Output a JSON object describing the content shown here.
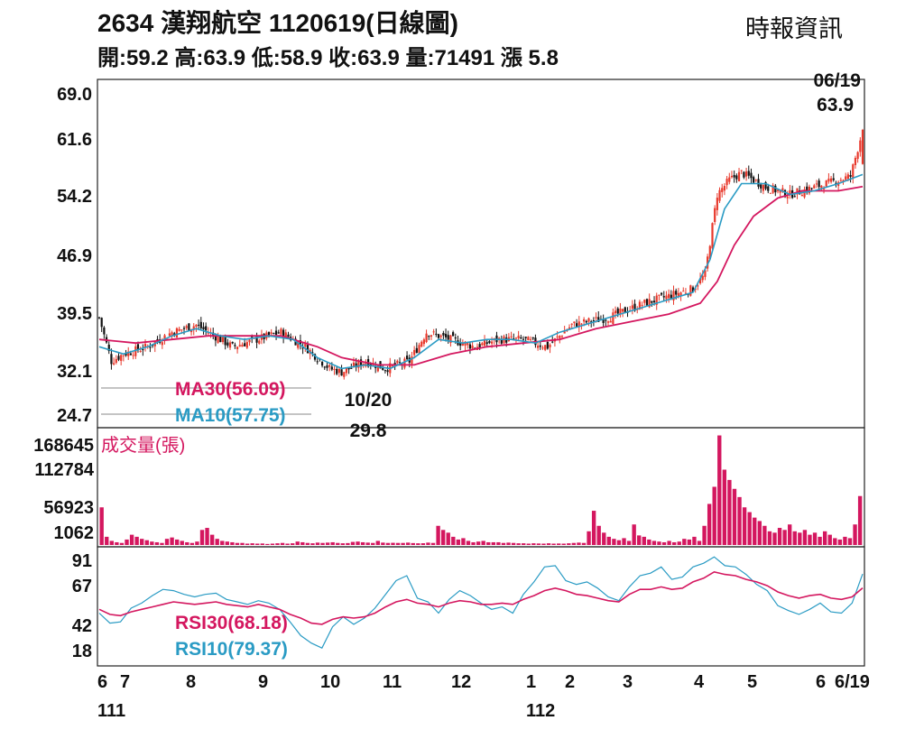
{
  "header": {
    "title": "2634  漢翔航空 1120619(日線圖)",
    "source": "時報資訊",
    "ohlc": "開:59.2 高:63.9 低:58.9 收:63.9 量:71491 漲 5.8"
  },
  "colors": {
    "up": "#e8392c",
    "down": "#111111",
    "ma30": "#d4175f",
    "ma10": "#2a9bc4",
    "volume": "#d4175f",
    "rsi30": "#d4175f",
    "rsi10": "#2a9bc4",
    "frame": "#222222"
  },
  "chart_data": [
    {
      "type": "candlestick",
      "panel": "price",
      "yticks": [
        "69.0",
        "61.6",
        "54.2",
        "46.9",
        "39.5",
        "32.1",
        "24.7"
      ],
      "ylim": [
        24.7,
        69.0
      ],
      "annotations": [
        {
          "date": "06/19",
          "value": "63.9"
        },
        {
          "date": "10/20",
          "value": "29.8"
        }
      ],
      "legend": [
        {
          "name": "MA30",
          "label": "MA30(56.09)"
        },
        {
          "name": "MA10",
          "label": "MA10(57.75)"
        }
      ],
      "close_path": [
        [
          0,
          38
        ],
        [
          5,
          32
        ],
        [
          10,
          33
        ],
        [
          20,
          34
        ],
        [
          30,
          36
        ],
        [
          40,
          37
        ],
        [
          50,
          35
        ],
        [
          55,
          34
        ],
        [
          65,
          35
        ],
        [
          75,
          36
        ],
        [
          85,
          34
        ],
        [
          95,
          31
        ],
        [
          100,
          30.5
        ],
        [
          110,
          32
        ],
        [
          118,
          31
        ],
        [
          128,
          32
        ],
        [
          135,
          36
        ],
        [
          145,
          35
        ],
        [
          155,
          34
        ],
        [
          165,
          35
        ],
        [
          175,
          35
        ],
        [
          185,
          34
        ],
        [
          195,
          37
        ],
        [
          210,
          38
        ],
        [
          225,
          40
        ],
        [
          235,
          41
        ],
        [
          245,
          42
        ],
        [
          250,
          44
        ],
        [
          255,
          55
        ],
        [
          260,
          57
        ],
        [
          265,
          58
        ],
        [
          275,
          56
        ],
        [
          285,
          55
        ],
        [
          295,
          56
        ],
        [
          305,
          57
        ],
        [
          310,
          57.5
        ],
        [
          315,
          63.9
        ]
      ],
      "ma10_path": [
        [
          0,
          34
        ],
        [
          10,
          33
        ],
        [
          20,
          34
        ],
        [
          30,
          35.5
        ],
        [
          40,
          36.5
        ],
        [
          50,
          35.5
        ],
        [
          60,
          35
        ],
        [
          70,
          35.5
        ],
        [
          80,
          35
        ],
        [
          90,
          32.5
        ],
        [
          100,
          31
        ],
        [
          110,
          31.5
        ],
        [
          120,
          31
        ],
        [
          130,
          32.5
        ],
        [
          140,
          35
        ],
        [
          150,
          34.5
        ],
        [
          160,
          35
        ],
        [
          170,
          35
        ],
        [
          180,
          34.5
        ],
        [
          190,
          36
        ],
        [
          200,
          37
        ],
        [
          215,
          38.5
        ],
        [
          230,
          40
        ],
        [
          245,
          41.5
        ],
        [
          252,
          46
        ],
        [
          258,
          53
        ],
        [
          265,
          56.5
        ],
        [
          275,
          56.5
        ],
        [
          285,
          55
        ],
        [
          295,
          55.5
        ],
        [
          305,
          56.5
        ],
        [
          315,
          57.75
        ]
      ],
      "ma30_path": [
        [
          0,
          35
        ],
        [
          15,
          34.5
        ],
        [
          30,
          35
        ],
        [
          45,
          35.5
        ],
        [
          60,
          35.5
        ],
        [
          75,
          35.5
        ],
        [
          90,
          34
        ],
        [
          100,
          32.5
        ],
        [
          115,
          31.5
        ],
        [
          130,
          31.5
        ],
        [
          145,
          33
        ],
        [
          160,
          34
        ],
        [
          175,
          34.5
        ],
        [
          190,
          35
        ],
        [
          205,
          36.5
        ],
        [
          220,
          37.5
        ],
        [
          235,
          38.5
        ],
        [
          248,
          40
        ],
        [
          255,
          43
        ],
        [
          262,
          48
        ],
        [
          270,
          52
        ],
        [
          280,
          54.5
        ],
        [
          290,
          55.5
        ],
        [
          305,
          55.5
        ],
        [
          315,
          56.09
        ]
      ]
    },
    {
      "type": "bar",
      "panel": "volume",
      "title": "成交量(張)",
      "yticks": [
        "168645",
        "112784",
        "56923",
        "1062"
      ],
      "ylim": [
        1062,
        168645
      ],
      "values": [
        55000,
        12000,
        6000,
        4000,
        3000,
        8000,
        15000,
        12000,
        9000,
        7000,
        5000,
        4000,
        3000,
        9000,
        11000,
        8000,
        6000,
        4000,
        3000,
        5000,
        22000,
        25000,
        15000,
        9000,
        6000,
        5000,
        4000,
        3000,
        3000,
        2000,
        2500,
        2000,
        2200,
        1500,
        2000,
        2500,
        3000,
        2000,
        2500,
        5000,
        4000,
        3000,
        2500,
        3500,
        3000,
        3500,
        4000,
        3000,
        2500,
        2800,
        4500,
        5000,
        4000,
        3500,
        3000,
        6000,
        3500,
        3000,
        3200,
        3000,
        3000,
        3500,
        2800,
        2500,
        2600,
        3500,
        3000,
        28000,
        22000,
        18000,
        12000,
        8000,
        10000,
        6000,
        4000,
        5000,
        6000,
        4000,
        4000,
        4000,
        3000,
        3500,
        3000,
        2500,
        2500,
        2000,
        2500,
        2200,
        2000,
        2500,
        2000,
        2200,
        2000,
        2500,
        3000,
        3500,
        3000,
        20000,
        50000,
        28000,
        18000,
        12000,
        9000,
        7000,
        10000,
        6000,
        30000,
        14000,
        12000,
        8000,
        6000,
        5000,
        4000,
        6000,
        4000,
        5000,
        9000,
        8000,
        12000,
        6000,
        28000,
        60000,
        85000,
        160000,
        110000,
        95000,
        82000,
        70000,
        55000,
        48000,
        40000,
        35000,
        28000,
        20000,
        18000,
        25000,
        22000,
        30000,
        20000,
        18000,
        22000,
        15000,
        18000,
        12000,
        20000,
        15000,
        10000,
        8000,
        12000,
        10000,
        30000,
        71491
      ]
    },
    {
      "type": "line",
      "panel": "rsi",
      "yticks": [
        "91",
        "67",
        "42",
        "18"
      ],
      "ylim": [
        18,
        91
      ],
      "legend": [
        {
          "name": "RSI30",
          "label": "RSI30(68.18)"
        },
        {
          "name": "RSI10",
          "label": "RSI10(79.37)"
        }
      ],
      "rsi30": [
        51,
        47,
        46,
        49,
        51,
        53,
        55,
        57,
        56,
        55,
        56,
        57,
        55,
        54,
        53,
        55,
        53,
        51,
        47,
        44,
        40,
        39,
        43,
        45,
        44,
        45,
        48,
        53,
        57,
        59,
        56,
        55,
        53,
        56,
        58,
        57,
        55,
        55,
        56,
        55,
        59,
        62,
        66,
        68,
        66,
        63,
        62,
        60,
        58,
        57,
        63,
        67,
        67,
        69,
        67,
        68,
        73,
        76,
        81,
        79,
        78,
        75,
        73,
        70,
        65,
        62,
        60,
        62,
        63,
        60,
        59,
        61,
        68.18
      ],
      "rsi10": [
        48,
        40,
        41,
        52,
        56,
        62,
        67,
        66,
        63,
        61,
        63,
        64,
        59,
        57,
        55,
        58,
        56,
        51,
        41,
        30,
        24,
        20,
        37,
        45,
        39,
        44,
        52,
        63,
        74,
        78,
        60,
        57,
        48,
        59,
        66,
        62,
        56,
        51,
        53,
        48,
        63,
        73,
        85,
        86,
        74,
        71,
        73,
        68,
        61,
        58,
        69,
        78,
        80,
        85,
        75,
        77,
        85,
        88,
        93,
        86,
        85,
        79,
        71,
        66,
        54,
        50,
        47,
        51,
        56,
        49,
        48,
        56,
        79.37
      ]
    }
  ],
  "xaxis": {
    "labels": [
      "6",
      "7",
      "8",
      "9",
      "10",
      "11",
      "12",
      "1",
      "2",
      "3",
      "4",
      "5",
      "6",
      "6/19"
    ],
    "years": [
      "111",
      "112"
    ]
  }
}
